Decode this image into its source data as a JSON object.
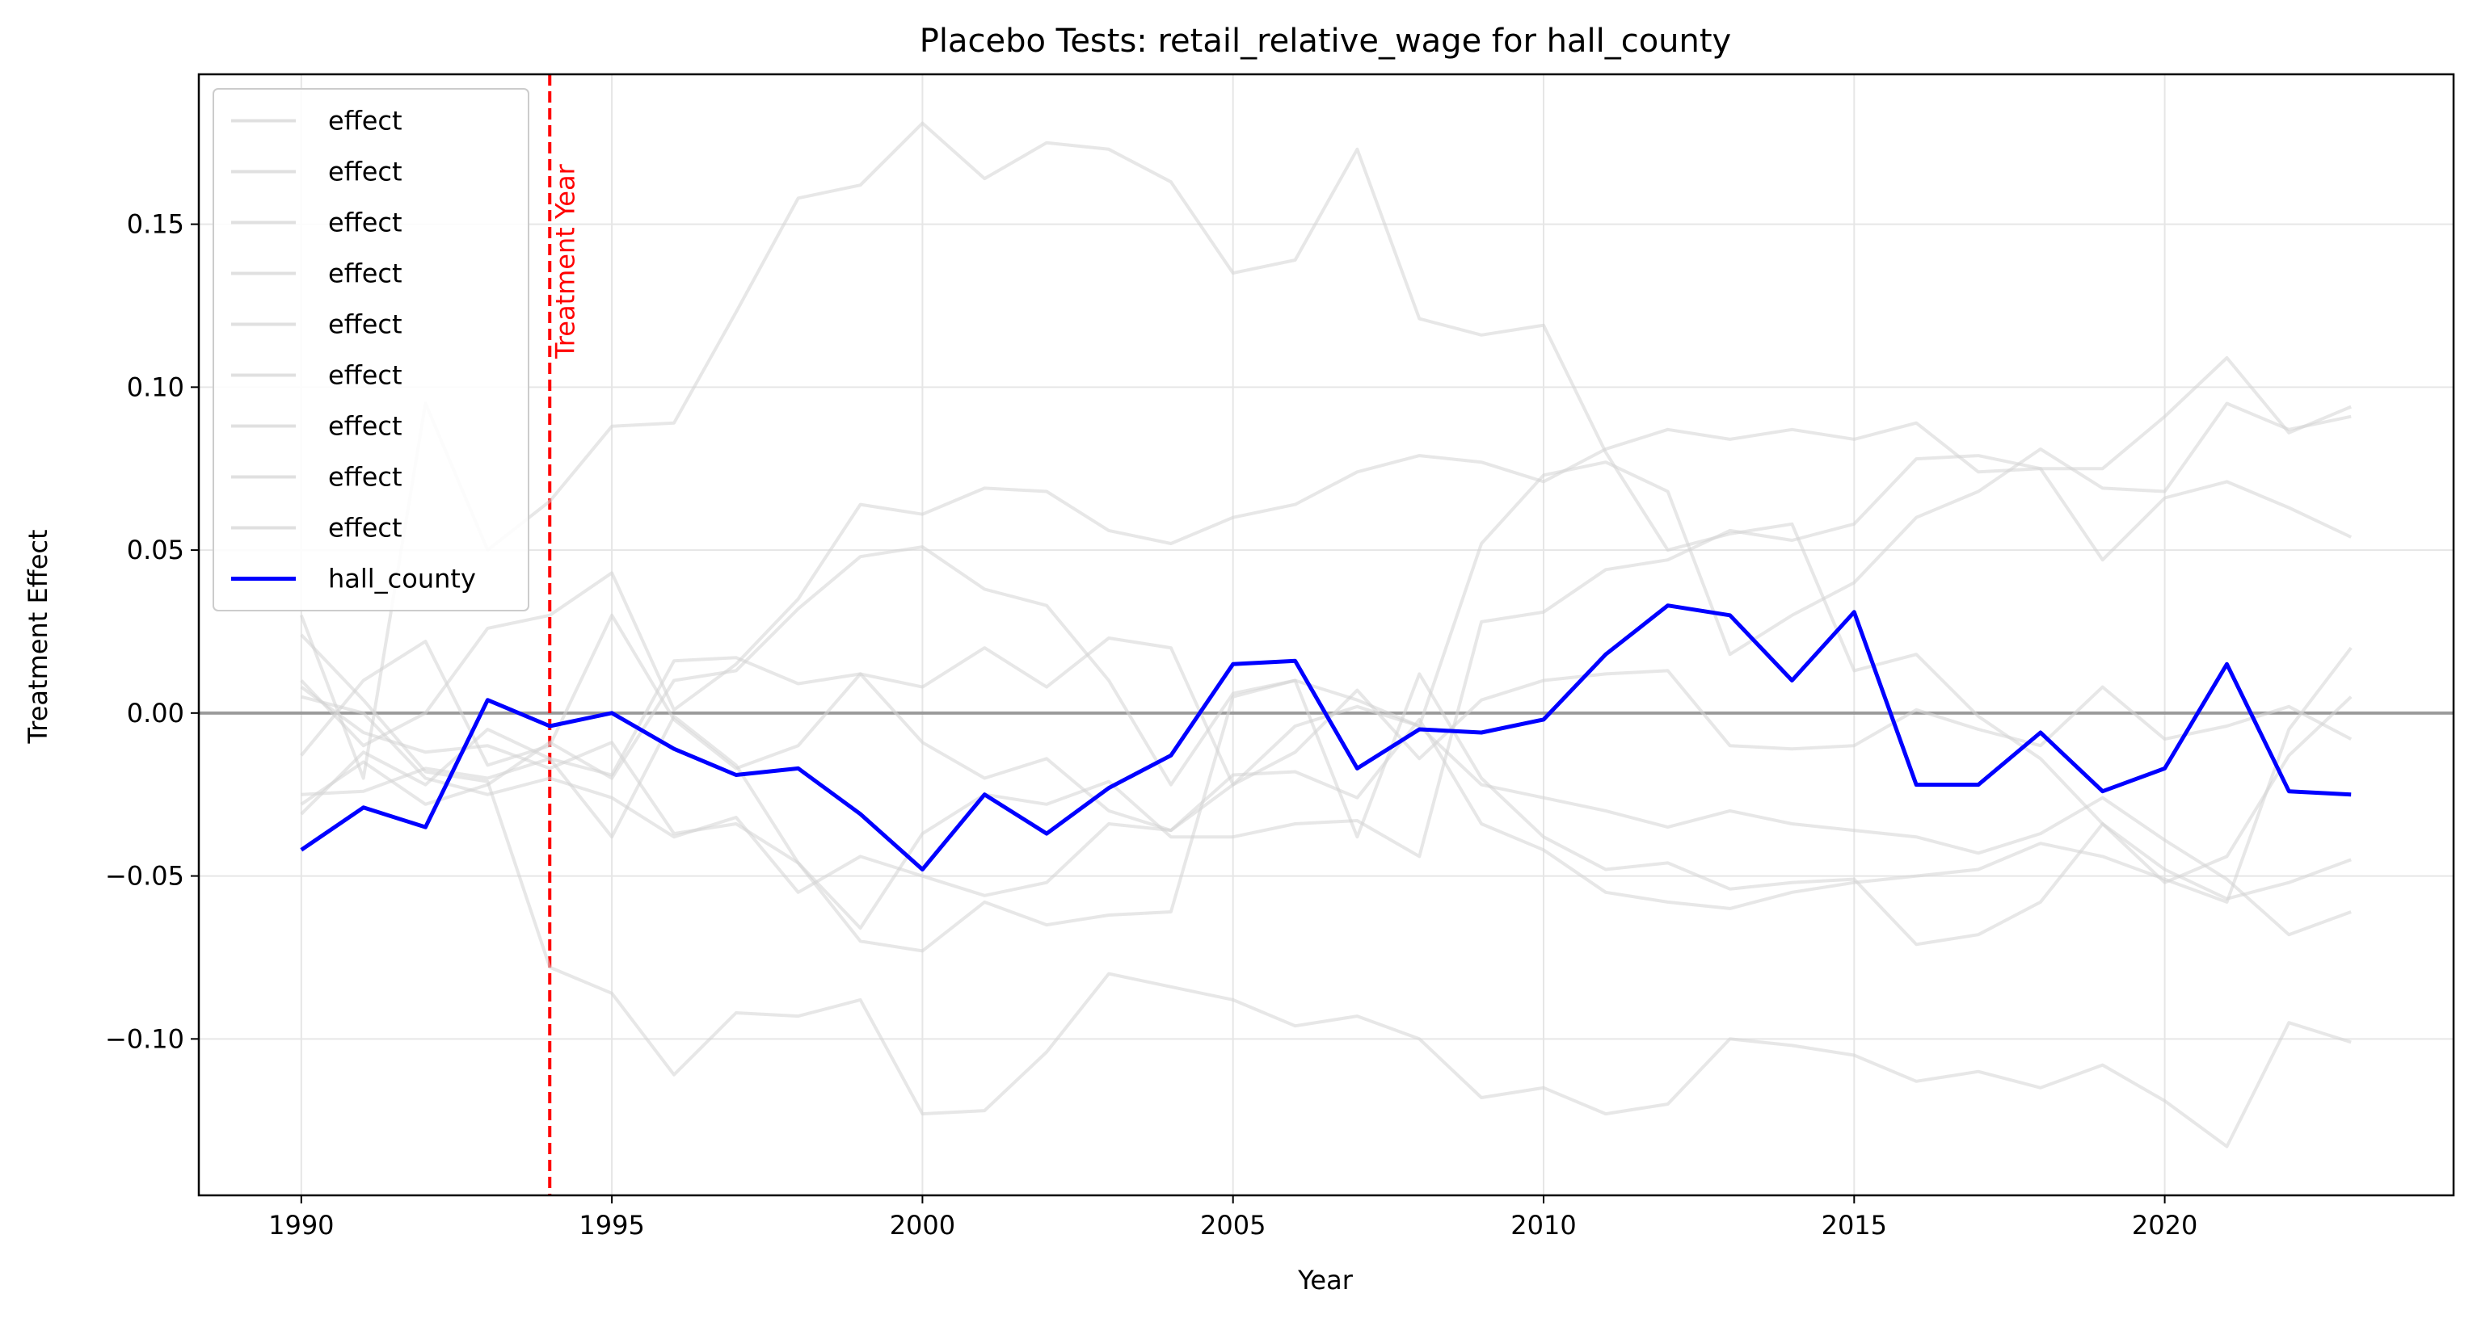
{
  "chart_data": {
    "type": "line",
    "title": "Placebo Tests: retail_relative_wage for hall_county",
    "xlabel": "Year",
    "ylabel": "Treatment Effect",
    "xlim": [
      1988.35,
      2024.65
    ],
    "ylim": [
      -0.148,
      0.196
    ],
    "xticks": [
      1990,
      1995,
      2000,
      2005,
      2010,
      2015,
      2020
    ],
    "xtick_labels": [
      "1990",
      "1995",
      "2000",
      "2005",
      "2010",
      "2015",
      "2020"
    ],
    "yticks": [
      -0.1,
      -0.05,
      0.0,
      0.05,
      0.1,
      0.15
    ],
    "ytick_labels": [
      "−0.10",
      "−0.05",
      "0.00",
      "0.05",
      "0.10",
      "0.15"
    ],
    "grid": true,
    "legend_position": "top-left",
    "x": [
      1990,
      1991,
      1992,
      1993,
      1994,
      1995,
      1996,
      1997,
      1998,
      1999,
      2000,
      2001,
      2002,
      2003,
      2004,
      2005,
      2006,
      2007,
      2008,
      2009,
      2010,
      2011,
      2012,
      2013,
      2014,
      2015,
      2016,
      2017,
      2018,
      2019,
      2020,
      2021,
      2022,
      2023
    ],
    "treatment_year": 1994,
    "treatment_label": "Treatment Year",
    "reference_line_y": 0.0,
    "colors": {
      "placebo": "#d3d3d3",
      "treated": "#0000ff",
      "treatment": "#ff0000",
      "zero": "#808080"
    },
    "series": [
      {
        "name": "effect",
        "role": "placebo",
        "values": [
          0.03,
          -0.02,
          0.095,
          0.05,
          0.065,
          0.088,
          0.089,
          0.123,
          0.158,
          0.162,
          0.181,
          0.164,
          0.175,
          0.173,
          0.163,
          0.135,
          0.139,
          0.173,
          0.121,
          0.116,
          0.119,
          0.08,
          0.05,
          0.055,
          0.058,
          0.013,
          0.018,
          -0.001,
          -0.014,
          -0.034,
          -0.048,
          -0.057,
          -0.052,
          -0.045
        ]
      },
      {
        "name": "effect",
        "role": "placebo",
        "values": [
          -0.013,
          0.01,
          0.022,
          -0.016,
          -0.01,
          0.03,
          -0.002,
          -0.017,
          -0.01,
          0.012,
          0.008,
          0.02,
          0.008,
          0.023,
          0.02,
          -0.022,
          -0.012,
          0.007,
          -0.014,
          0.004,
          0.01,
          0.012,
          0.013,
          -0.01,
          -0.011,
          -0.01,
          0.001,
          -0.005,
          -0.01,
          0.008,
          -0.008,
          -0.004,
          0.002,
          -0.008
        ]
      },
      {
        "name": "effect",
        "role": "placebo",
        "values": [
          0.01,
          -0.01,
          0.0,
          0.026,
          0.03,
          0.043,
          0.001,
          0.015,
          0.035,
          0.064,
          0.061,
          0.069,
          0.068,
          0.056,
          0.052,
          0.06,
          0.064,
          0.074,
          0.079,
          0.077,
          0.071,
          0.081,
          0.087,
          0.084,
          0.087,
          0.084,
          0.089,
          0.074,
          0.075,
          0.075,
          0.091,
          0.109,
          0.086,
          0.094
        ]
      },
      {
        "name": "effect",
        "role": "placebo",
        "values": [
          -0.025,
          -0.024,
          -0.017,
          -0.02,
          -0.014,
          -0.019,
          0.016,
          0.017,
          0.009,
          0.012,
          -0.009,
          -0.02,
          -0.014,
          -0.03,
          -0.036,
          -0.022,
          -0.004,
          0.002,
          -0.004,
          0.052,
          0.073,
          0.077,
          0.068,
          0.018,
          0.03,
          0.04,
          0.06,
          0.068,
          0.081,
          0.069,
          0.068,
          0.095,
          0.087,
          0.091
        ]
      },
      {
        "name": "effect",
        "role": "placebo",
        "values": [
          0.008,
          -0.006,
          -0.012,
          -0.01,
          -0.017,
          -0.009,
          -0.037,
          -0.034,
          -0.046,
          -0.066,
          -0.037,
          -0.025,
          -0.028,
          -0.021,
          -0.038,
          -0.038,
          -0.034,
          -0.033,
          -0.044,
          0.028,
          0.031,
          0.044,
          0.047,
          0.056,
          0.053,
          0.058,
          0.078,
          0.079,
          0.075,
          0.047,
          0.066,
          0.071,
          0.063,
          0.054
        ]
      },
      {
        "name": "effect",
        "role": "placebo",
        "values": [
          -0.028,
          -0.015,
          -0.028,
          -0.022,
          -0.009,
          -0.02,
          0.01,
          0.013,
          0.032,
          0.048,
          0.051,
          0.038,
          0.033,
          0.01,
          -0.022,
          0.006,
          0.01,
          0.004,
          -0.004,
          -0.022,
          -0.026,
          -0.03,
          -0.035,
          -0.03,
          -0.034,
          -0.036,
          -0.038,
          -0.043,
          -0.037,
          -0.026,
          -0.039,
          -0.051,
          -0.068,
          -0.061
        ]
      },
      {
        "name": "effect",
        "role": "placebo",
        "values": [
          -0.031,
          -0.012,
          -0.022,
          -0.005,
          -0.014,
          -0.038,
          -0.001,
          -0.016,
          -0.046,
          -0.07,
          -0.073,
          -0.058,
          -0.065,
          -0.062,
          -0.061,
          0.005,
          0.01,
          -0.038,
          0.012,
          -0.02,
          -0.038,
          -0.048,
          -0.046,
          -0.054,
          -0.052,
          -0.051,
          -0.071,
          -0.068,
          -0.058,
          -0.034,
          -0.052,
          -0.044,
          -0.013,
          0.005
        ]
      },
      {
        "name": "effect",
        "role": "placebo",
        "values": [
          0.005,
          0.0,
          -0.02,
          -0.025,
          -0.02,
          -0.026,
          -0.038,
          -0.032,
          -0.055,
          -0.044,
          -0.05,
          -0.056,
          -0.052,
          -0.034,
          -0.036,
          -0.019,
          -0.018,
          -0.026,
          -0.002,
          -0.034,
          -0.042,
          -0.055,
          -0.058,
          -0.06,
          -0.055,
          -0.052,
          -0.05,
          -0.048,
          -0.04,
          -0.044,
          -0.051,
          -0.058,
          -0.005,
          0.02
        ]
      },
      {
        "name": "effect",
        "role": "placebo",
        "values": [
          0.024,
          0.004,
          -0.018,
          -0.021,
          -0.078,
          -0.086,
          -0.111,
          -0.092,
          -0.093,
          -0.088,
          -0.123,
          -0.122,
          -0.104,
          -0.08,
          -0.084,
          -0.088,
          -0.096,
          -0.093,
          -0.1,
          -0.118,
          -0.115,
          -0.123,
          -0.12,
          -0.1,
          -0.102,
          -0.105,
          -0.113,
          -0.11,
          -0.115,
          -0.108,
          -0.119,
          -0.133,
          -0.095,
          -0.101
        ]
      },
      {
        "name": "hall_county",
        "role": "treated",
        "values": [
          -0.042,
          -0.029,
          -0.035,
          0.004,
          -0.004,
          0.0,
          -0.011,
          -0.019,
          -0.017,
          -0.031,
          -0.048,
          -0.025,
          -0.037,
          -0.023,
          -0.013,
          0.015,
          0.016,
          -0.017,
          -0.005,
          -0.006,
          -0.002,
          0.018,
          0.033,
          0.03,
          0.01,
          0.031,
          -0.022,
          -0.022,
          -0.006,
          -0.024,
          -0.017,
          0.015,
          -0.024,
          -0.025
        ]
      }
    ]
  }
}
